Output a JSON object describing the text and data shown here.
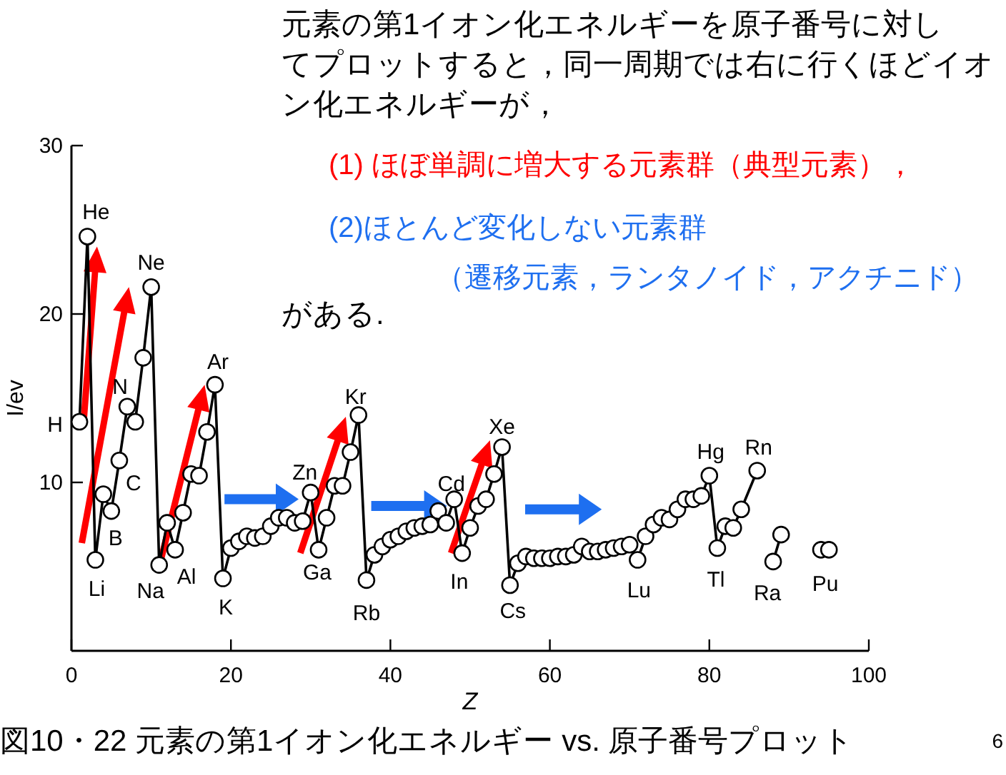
{
  "chart_data": {
    "type": "line",
    "xlabel": "Z",
    "ylabel": "I/ev",
    "xlim": [
      0,
      100
    ],
    "xticks": [
      0,
      20,
      40,
      60,
      80,
      100
    ],
    "ylim": [
      0,
      30
    ],
    "yticks": [
      10,
      20,
      30
    ],
    "marker": "circle",
    "line_style": "solid",
    "series": [
      {
        "color": "#000000",
        "x": [
          1,
          2,
          3,
          4,
          5,
          6,
          7,
          8,
          9,
          10,
          11,
          12,
          13,
          14,
          15,
          16,
          17,
          18,
          19,
          20,
          21,
          22,
          23,
          24,
          25,
          26,
          27,
          28,
          29,
          30,
          31,
          32,
          33,
          34,
          35,
          36,
          37,
          38,
          39,
          40,
          41,
          42,
          43,
          44,
          45,
          46,
          47,
          48,
          49,
          50,
          51,
          52,
          53,
          54,
          55,
          56,
          57,
          58,
          59,
          60,
          61,
          62,
          63,
          64,
          65,
          66,
          67,
          68,
          69,
          70,
          71,
          72,
          73,
          74,
          75,
          76,
          77,
          78,
          79,
          80,
          81,
          82,
          83,
          84,
          86
        ],
        "values": [
          13.6,
          24.6,
          5.4,
          9.3,
          8.3,
          11.3,
          14.5,
          13.6,
          17.4,
          21.6,
          5.1,
          7.6,
          6.0,
          8.2,
          10.5,
          10.4,
          13.0,
          15.8,
          4.3,
          6.1,
          6.5,
          6.8,
          6.7,
          6.8,
          7.4,
          7.9,
          7.9,
          7.6,
          7.7,
          9.4,
          6.0,
          7.9,
          9.8,
          9.8,
          11.8,
          14.0,
          4.2,
          5.7,
          6.2,
          6.6,
          6.8,
          7.1,
          7.3,
          7.4,
          7.5,
          8.3,
          7.6,
          9.0,
          5.8,
          7.3,
          8.6,
          9.0,
          10.5,
          12.1,
          3.9,
          5.2,
          5.6,
          5.5,
          5.5,
          5.5,
          5.6,
          5.6,
          5.7,
          6.2,
          5.9,
          5.9,
          6.0,
          6.1,
          6.2,
          6.3,
          5.4,
          6.8,
          7.5,
          7.9,
          7.8,
          8.4,
          9.0,
          9.0,
          9.2,
          10.4,
          6.1,
          7.4,
          7.3,
          8.4,
          10.7
        ]
      },
      {
        "color": "#000000",
        "x": [
          88,
          89
        ],
        "values": [
          5.3,
          6.9
        ]
      },
      {
        "type": "scatter",
        "color": "#000000",
        "x": [
          94,
          95
        ],
        "values": [
          6.0,
          6.0
        ]
      }
    ],
    "annotations": [
      {
        "text": "H",
        "x": 1,
        "y": 13.6
      },
      {
        "text": "He",
        "x": 2,
        "y": 24.6
      },
      {
        "text": "Li",
        "x": 3,
        "y": 5.4
      },
      {
        "text": "B",
        "x": 5,
        "y": 8.3
      },
      {
        "text": "C",
        "x": 6,
        "y": 11.3
      },
      {
        "text": "N",
        "x": 7,
        "y": 14.5
      },
      {
        "text": "Ne",
        "x": 10,
        "y": 21.6
      },
      {
        "text": "Na",
        "x": 11,
        "y": 5.1
      },
      {
        "text": "Al",
        "x": 13,
        "y": 6.0
      },
      {
        "text": "Ar",
        "x": 18,
        "y": 15.8
      },
      {
        "text": "K",
        "x": 19,
        "y": 4.3
      },
      {
        "text": "Zn",
        "x": 30,
        "y": 9.4
      },
      {
        "text": "Ga",
        "x": 31,
        "y": 6.0
      },
      {
        "text": "Kr",
        "x": 36,
        "y": 14.0
      },
      {
        "text": "Rb",
        "x": 37,
        "y": 4.2
      },
      {
        "text": "Cd",
        "x": 48,
        "y": 9.0
      },
      {
        "text": "In",
        "x": 49,
        "y": 5.8
      },
      {
        "text": "Xe",
        "x": 54,
        "y": 12.1
      },
      {
        "text": "Cs",
        "x": 55,
        "y": 3.9
      },
      {
        "text": "Lu",
        "x": 71,
        "y": 5.4
      },
      {
        "text": "Hg",
        "x": 80,
        "y": 10.4
      },
      {
        "text": "Tl",
        "x": 81,
        "y": 6.1
      },
      {
        "text": "Rn",
        "x": 86,
        "y": 10.7
      },
      {
        "text": "Ra",
        "x": 88,
        "y": 5.3
      },
      {
        "text": "Pu",
        "x": 94,
        "y": 6.0
      },
      "元素の第1イオン化エネルギーを原子番号に対し",
      "てプロットすると，同一周期では右に行くほどイオ",
      "ン化エネルギーが，",
      "(1) ほぼ単調に増大する元素群（典型元素），",
      "(2)ほとんど変化しない元素群",
      "（遷移元素，ランタノイド，アクチニド）",
      "がある.",
      "図10・22  元素の第1イオン化エネルギー  vs. 原子番号プロット",
      "6"
    ]
  }
}
